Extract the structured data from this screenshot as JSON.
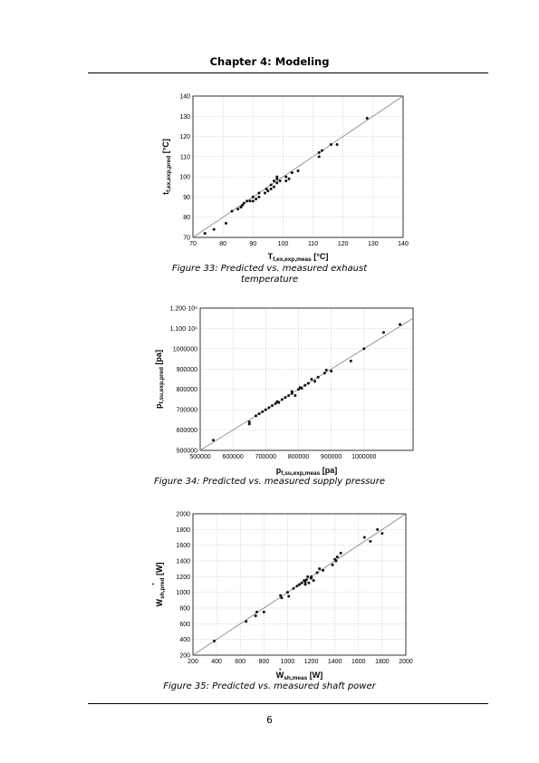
{
  "header": {
    "title": "Chapter 4: Modeling"
  },
  "figures": [
    {
      "caption_line1": "Figure 33: Predicted vs. measured exhaust",
      "caption_line2": "temperature"
    },
    {
      "caption": "Figure 34: Predicted vs. measured supply pressure"
    },
    {
      "caption": "Figure 35: Predicted vs. measured shaft power"
    }
  ],
  "page_number": "6",
  "chart_data": [
    {
      "type": "scatter",
      "title": "",
      "x_ticks": [
        "70",
        "80",
        "90",
        "100",
        "110",
        "120",
        "130",
        "140"
      ],
      "y_ticks": [
        "70",
        "80",
        "90",
        "100",
        "110",
        "120",
        "130",
        "140"
      ],
      "xlim": [
        70,
        140
      ],
      "ylim": [
        70,
        140
      ],
      "xlabel": {
        "main": "T",
        "sub": "f,ex,exp,meas",
        "unit": " [°C]"
      },
      "ylabel": {
        "main": "t",
        "sub": "f,ex,exp,pred",
        "unit": " [°C]"
      },
      "grid": true,
      "reference_line": "y=x",
      "points": [
        [
          74,
          72
        ],
        [
          77,
          74
        ],
        [
          81,
          77
        ],
        [
          83,
          83
        ],
        [
          85,
          84
        ],
        [
          86,
          85
        ],
        [
          86.5,
          86
        ],
        [
          87,
          87
        ],
        [
          88,
          88
        ],
        [
          89,
          88
        ],
        [
          90,
          88
        ],
        [
          90,
          90
        ],
        [
          91,
          89
        ],
        [
          92,
          90
        ],
        [
          92,
          92
        ],
        [
          94,
          92
        ],
        [
          94.5,
          94
        ],
        [
          95,
          93
        ],
        [
          96,
          94
        ],
        [
          96,
          96
        ],
        [
          97,
          95
        ],
        [
          97,
          98
        ],
        [
          98,
          97
        ],
        [
          98,
          99
        ],
        [
          98,
          100
        ],
        [
          99,
          98
        ],
        [
          101,
          100
        ],
        [
          101,
          98
        ],
        [
          102,
          99
        ],
        [
          103,
          102
        ],
        [
          105,
          103
        ],
        [
          112,
          110
        ],
        [
          112,
          112
        ],
        [
          113,
          113
        ],
        [
          116,
          116
        ],
        [
          118,
          116
        ],
        [
          128,
          129
        ]
      ]
    },
    {
      "type": "scatter",
      "title": "",
      "x_ticks": [
        "500000",
        "600000",
        "700000",
        "800000",
        "900000",
        "1000000"
      ],
      "y_ticks": [
        "500000",
        "600000",
        "700000",
        "800000",
        "900000",
        "1000000",
        "1.100·10⁶",
        "1.200·10⁶"
      ],
      "xlim": [
        500000,
        1150000
      ],
      "ylim": [
        500000,
        1200000
      ],
      "xlabel": {
        "main": "p",
        "sub": "f,su,exp,meas",
        "unit": " [pa]"
      },
      "ylabel": {
        "main": "p",
        "sub": "f,su,exp,pred",
        "unit": " [pa]"
      },
      "grid": true,
      "reference_line": "y=x",
      "points": [
        [
          540000,
          550000
        ],
        [
          650000,
          640000
        ],
        [
          650000,
          630000
        ],
        [
          670000,
          670000
        ],
        [
          680000,
          680000
        ],
        [
          690000,
          690000
        ],
        [
          700000,
          700000
        ],
        [
          710000,
          710000
        ],
        [
          720000,
          720000
        ],
        [
          730000,
          730000
        ],
        [
          735000,
          740000
        ],
        [
          740000,
          735000
        ],
        [
          750000,
          750000
        ],
        [
          760000,
          760000
        ],
        [
          770000,
          770000
        ],
        [
          780000,
          790000
        ],
        [
          780000,
          780000
        ],
        [
          790000,
          770000
        ],
        [
          800000,
          800000
        ],
        [
          805000,
          810000
        ],
        [
          810000,
          805000
        ],
        [
          820000,
          820000
        ],
        [
          830000,
          830000
        ],
        [
          840000,
          850000
        ],
        [
          850000,
          840000
        ],
        [
          860000,
          860000
        ],
        [
          880000,
          880000
        ],
        [
          885000,
          895000
        ],
        [
          900000,
          890000
        ],
        [
          960000,
          940000
        ],
        [
          1000000,
          1000000
        ],
        [
          1060000,
          1080000
        ],
        [
          1110000,
          1120000
        ]
      ]
    },
    {
      "type": "scatter",
      "title": "",
      "x_ticks": [
        "200",
        "400",
        "600",
        "800",
        "1000",
        "1200",
        "1400",
        "1600",
        "1800",
        "2000"
      ],
      "y_ticks": [
        "200",
        "400",
        "600",
        "800",
        "1000",
        "1200",
        "1400",
        "1600",
        "1800",
        "2000"
      ],
      "xlim": [
        200,
        2000
      ],
      "ylim": [
        200,
        2000
      ],
      "xlabel": {
        "main": "W",
        "sub": "sh,meas",
        "unit": " [W]"
      },
      "ylabel": {
        "main": "W",
        "sub": "sh,pred",
        "unit": " [W]"
      },
      "grid": true,
      "reference_line": "y=x",
      "points": [
        [
          380,
          380
        ],
        [
          650,
          630
        ],
        [
          730,
          700
        ],
        [
          740,
          750
        ],
        [
          800,
          750
        ],
        [
          940,
          960
        ],
        [
          950,
          930
        ],
        [
          1000,
          1000
        ],
        [
          1010,
          950
        ],
        [
          1050,
          1050
        ],
        [
          1080,
          1080
        ],
        [
          1100,
          1100
        ],
        [
          1120,
          1120
        ],
        [
          1140,
          1150
        ],
        [
          1150,
          1130
        ],
        [
          1150,
          1100
        ],
        [
          1160,
          1160
        ],
        [
          1170,
          1200
        ],
        [
          1180,
          1120
        ],
        [
          1200,
          1200
        ],
        [
          1200,
          1180
        ],
        [
          1220,
          1150
        ],
        [
          1250,
          1250
        ],
        [
          1270,
          1300
        ],
        [
          1300,
          1280
        ],
        [
          1380,
          1350
        ],
        [
          1400,
          1420
        ],
        [
          1410,
          1400
        ],
        [
          1420,
          1450
        ],
        [
          1450,
          1500
        ],
        [
          1650,
          1700
        ],
        [
          1700,
          1650
        ],
        [
          1760,
          1800
        ],
        [
          1800,
          1750
        ]
      ]
    }
  ]
}
